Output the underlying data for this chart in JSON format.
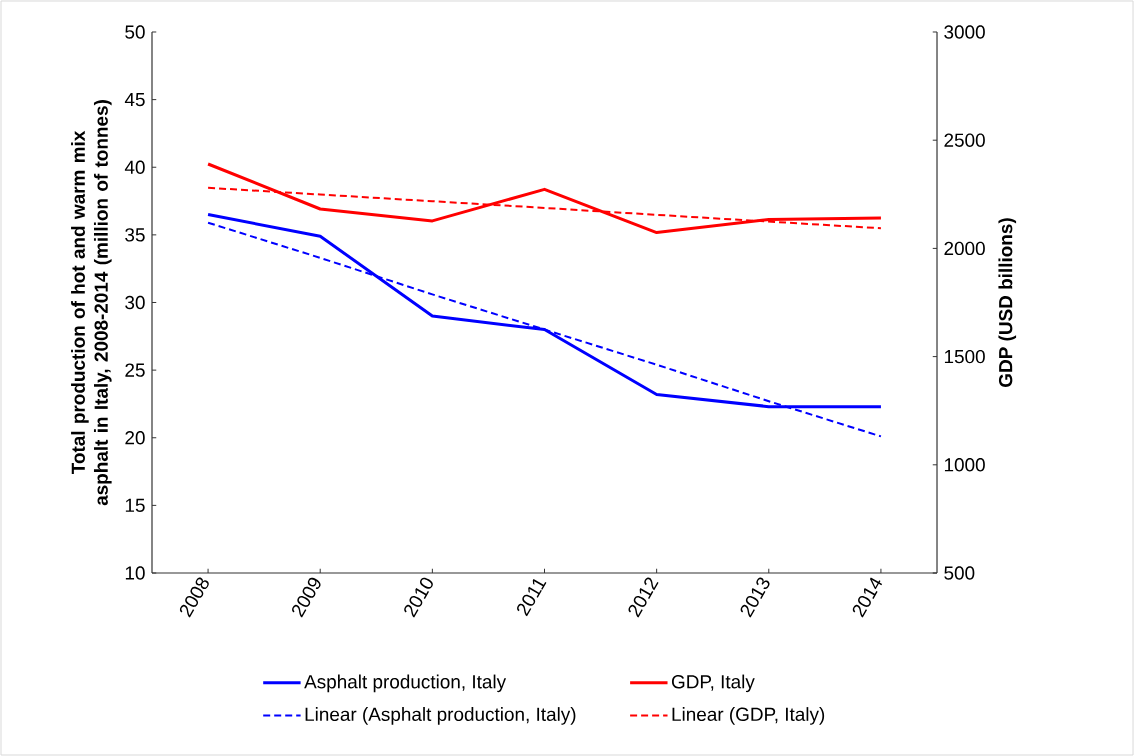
{
  "chart_data": {
    "type": "line",
    "ylabel": "Total production of hot and warm mix asphalt in Italy, 2008-2014 (million of tonnes)",
    "y2label": "GDP (USD billions)",
    "categories": [
      "2008",
      "2009",
      "2010",
      "2011",
      "2012",
      "2013",
      "2014"
    ],
    "series": [
      {
        "name": "Asphalt production, Italy",
        "color": "#0000ff",
        "values": [
          36.5,
          34.9,
          29.0,
          28.0,
          23.2,
          22.3,
          22.3
        ]
      },
      {
        "name": "GDP, Italy",
        "color": "#ff0000",
        "axis": "y2",
        "values": [
          2390,
          2182,
          2127,
          2273,
          2073,
          2134,
          2140
        ]
      },
      {
        "name": "Linear (Asphalt production, Italy)",
        "color": "#0000ff",
        "line_style": "dashed",
        "values": [
          35.9,
          33.3,
          30.6,
          28.0,
          25.4,
          22.7,
          20.1
        ]
      },
      {
        "name": "Linear (GDP, Italy)",
        "color": "#ff0000",
        "line_style": "dashed",
        "axis": "y2",
        "values": [
          2280,
          2249,
          2218,
          2187,
          2155,
          2124,
          2093
        ]
      }
    ],
    "ylim": [
      10,
      50
    ],
    "yticks": [
      10,
      15,
      20,
      25,
      30,
      35,
      40,
      45,
      50
    ],
    "y2lim": [
      500,
      3000
    ],
    "y2ticks": [
      500,
      1000,
      1500,
      2000,
      2500,
      3000
    ],
    "legend": "bottom",
    "grid": false
  }
}
